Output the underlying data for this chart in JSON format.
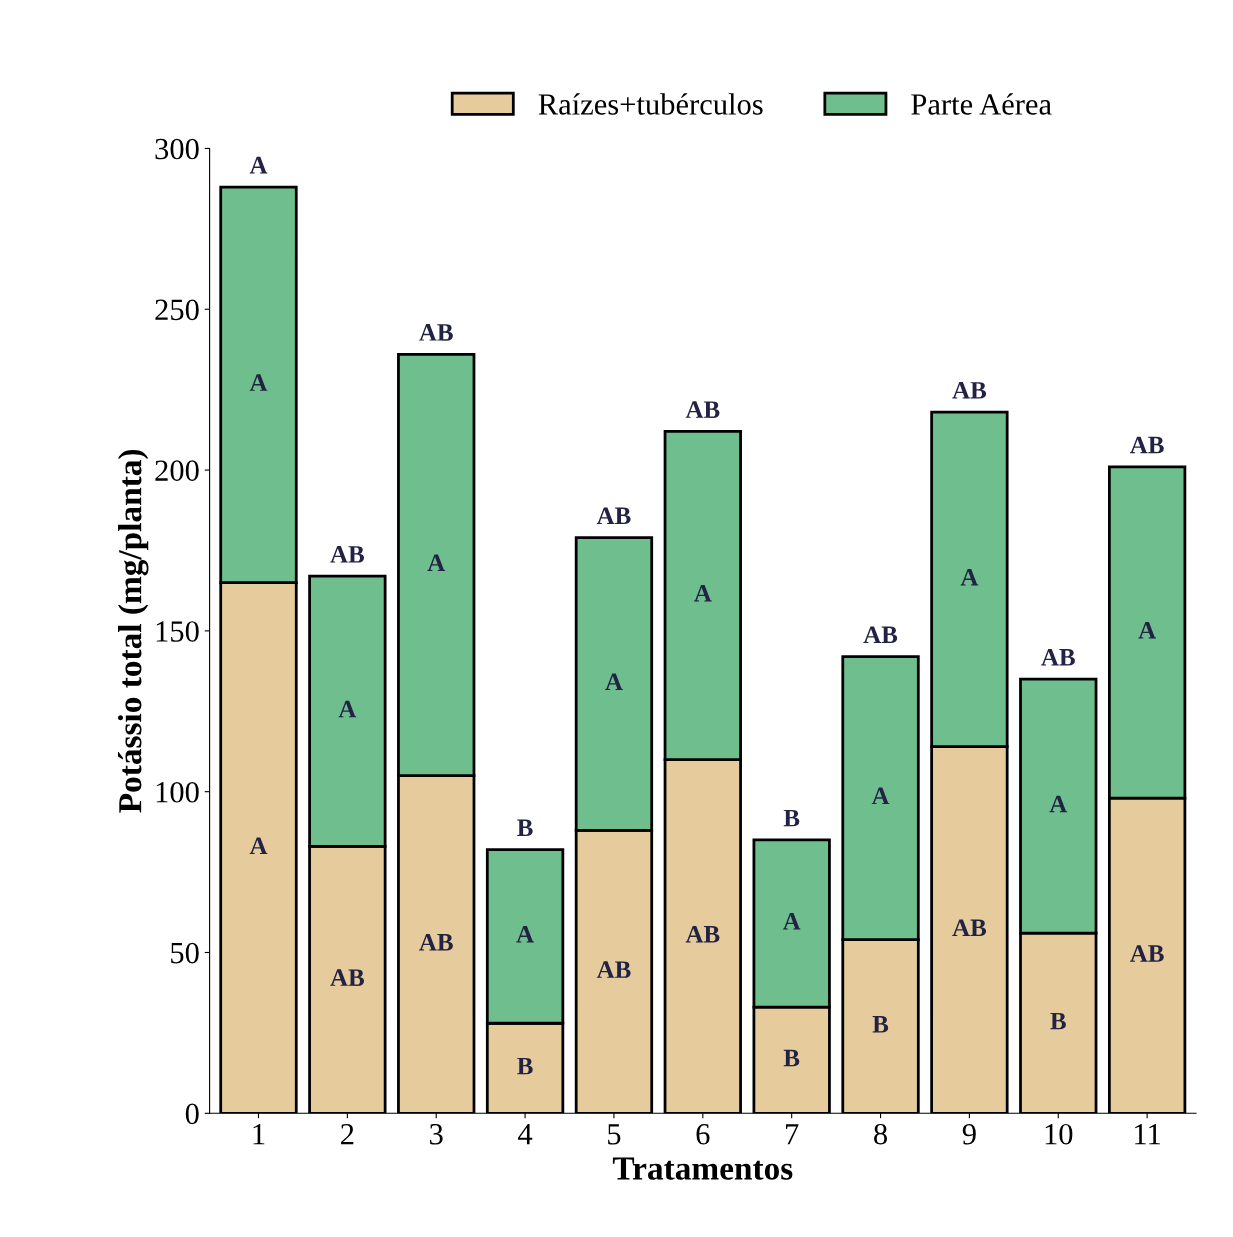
{
  "chart_data": {
    "type": "bar",
    "stacked": true,
    "xlabel": "Tratamentos",
    "ylabel": "Potássio total (mg/planta)",
    "categories": [
      "1",
      "2",
      "3",
      "4",
      "5",
      "6",
      "7",
      "8",
      "9",
      "10",
      "11"
    ],
    "series": [
      {
        "name": "Raízes+tubérculos",
        "color": "#e6cc9c",
        "values": [
          165,
          83,
          105,
          28,
          88,
          110,
          33,
          54,
          114,
          56,
          98
        ],
        "value_labels": [
          "A",
          "AB",
          "AB",
          "B",
          "AB",
          "AB",
          "B",
          "B",
          "AB",
          "B",
          "AB"
        ]
      },
      {
        "name": "Parte Aérea",
        "color": "#6fbf8e",
        "values": [
          123,
          84,
          131,
          54,
          91,
          102,
          52,
          88,
          104,
          79,
          103
        ],
        "value_labels": [
          "A",
          "A",
          "A",
          "A",
          "A",
          "A",
          "A",
          "A",
          "A",
          "A",
          "A"
        ]
      }
    ],
    "totals": [
      "A",
      "AB",
      "AB",
      "B",
      "AB",
      "AB",
      "B",
      "AB",
      "AB",
      "AB",
      "AB"
    ],
    "ylim": [
      0,
      300
    ],
    "yticks": [
      0,
      50,
      100,
      150,
      200,
      250,
      300
    ],
    "grid": false,
    "legend": "top"
  }
}
